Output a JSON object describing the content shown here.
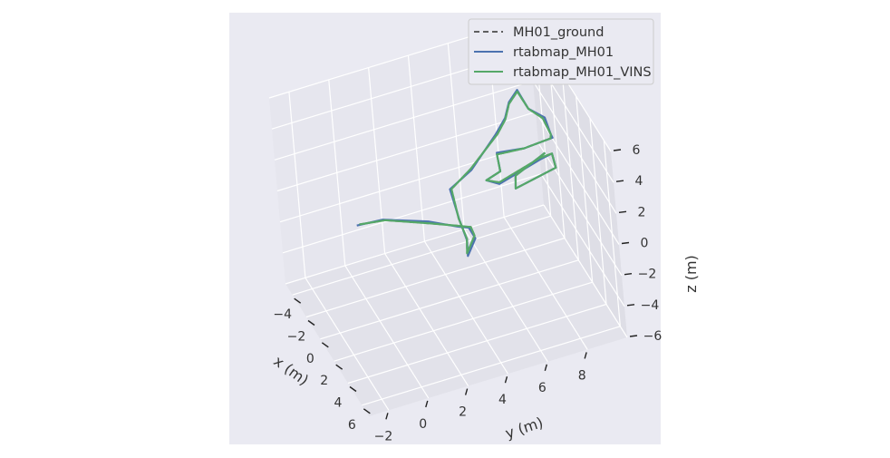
{
  "chart_data": {
    "type": "line",
    "projection": "3d",
    "title": "",
    "xlabel": "x (m)",
    "ylabel": "y (m)",
    "zlabel": "z (m)",
    "xlim": [
      -5,
      7
    ],
    "ylim": [
      -3,
      10
    ],
    "zlim": [
      -6,
      6
    ],
    "x_ticks": [
      -4,
      -2,
      0,
      2,
      4,
      6
    ],
    "y_ticks": [
      -2,
      0,
      2,
      4,
      6,
      8
    ],
    "z_ticks": [
      -6,
      -4,
      -2,
      0,
      2,
      4,
      6
    ],
    "x_tick_labels": [
      "−4",
      "−2",
      "0",
      "2",
      "4",
      "6"
    ],
    "y_tick_labels": [
      "−2",
      "0",
      "2",
      "4",
      "6",
      "8"
    ],
    "z_tick_labels": [
      "−6",
      "−4",
      "−2",
      "0",
      "2",
      "4",
      "6"
    ],
    "grid": true,
    "legend_position": "top-right",
    "series": [
      {
        "name": "MH01_ground",
        "color": "#5f5f5f",
        "dashed": true,
        "points": [
          [
            -0.3,
            -0.5,
            0.2
          ],
          [
            0.7,
            0.5,
            0.8
          ],
          [
            2.5,
            2.2,
            1.2
          ],
          [
            3.1,
            3.4,
            1.0
          ],
          [
            2.6,
            4.1,
            0.3
          ],
          [
            3.1,
            4.1,
            0.1
          ],
          [
            3.3,
            3.6,
            -0.7
          ],
          [
            2.8,
            3.8,
            -0.2
          ],
          [
            2.4,
            3.6,
            0.9
          ],
          [
            0.6,
            3.9,
            1.4
          ],
          [
            0.0,
            5.1,
            1.8
          ],
          [
            -0.1,
            6.6,
            3.4
          ],
          [
            -0.3,
            7.1,
            4.0
          ],
          [
            -0.8,
            7.5,
            4.5
          ],
          [
            -1.3,
            8.1,
            4.7
          ],
          [
            -0.7,
            8.4,
            3.9
          ],
          [
            -0.5,
            9.0,
            3.2
          ],
          [
            -0.4,
            9.3,
            2.1
          ],
          [
            -1.2,
            9.5,
            1.2
          ],
          [
            -1.3,
            8.2,
            1.0
          ],
          [
            -0.5,
            6.6,
            1.8
          ],
          [
            0.5,
            6.4,
            1.5
          ],
          [
            1.1,
            5.5,
            1.7
          ],
          [
            1.2,
            6.1,
            1.4
          ],
          [
            -0.2,
            8.6,
            1.0
          ],
          [
            -0.5,
            9.3,
            0.8
          ],
          [
            0.3,
            9.2,
            0.5
          ],
          [
            1.8,
            6.7,
            1.2
          ],
          [
            1.3,
            6.9,
            1.6
          ],
          [
            -0.6,
            9.0,
            0.9
          ]
        ]
      },
      {
        "name": "rtabmap_MH01",
        "color": "#4c72b0",
        "dashed": false,
        "points": [
          [
            -0.4,
            -0.6,
            0.1
          ],
          [
            0.6,
            0.4,
            0.8
          ],
          [
            2.4,
            2.1,
            1.3
          ],
          [
            3.1,
            3.3,
            1.0
          ],
          [
            2.6,
            4.0,
            0.3
          ],
          [
            3.2,
            4.1,
            0.0
          ],
          [
            3.4,
            3.6,
            -0.8
          ],
          [
            2.8,
            3.8,
            -0.3
          ],
          [
            2.5,
            3.6,
            0.9
          ],
          [
            0.7,
            3.8,
            1.5
          ],
          [
            0.1,
            5.1,
            1.8
          ],
          [
            -0.1,
            6.5,
            3.4
          ],
          [
            -0.3,
            7.1,
            4.1
          ],
          [
            -0.8,
            7.5,
            4.6
          ],
          [
            -1.3,
            8.1,
            4.8
          ],
          [
            -0.7,
            8.4,
            3.9
          ],
          [
            -0.5,
            9.1,
            3.2
          ],
          [
            -0.4,
            9.3,
            2.1
          ],
          [
            -1.2,
            9.6,
            1.2
          ],
          [
            -1.3,
            8.2,
            1.0
          ],
          [
            -0.5,
            6.6,
            1.9
          ],
          [
            0.5,
            6.4,
            1.5
          ],
          [
            1.1,
            5.5,
            1.7
          ],
          [
            1.2,
            6.1,
            1.3
          ],
          [
            -0.2,
            8.6,
            0.9
          ],
          [
            -0.5,
            9.3,
            0.8
          ],
          [
            0.3,
            9.2,
            0.5
          ],
          [
            1.8,
            6.7,
            1.2
          ],
          [
            1.3,
            6.9,
            1.6
          ],
          [
            -0.6,
            9.0,
            0.9
          ]
        ]
      },
      {
        "name": "rtabmap_MH01_VINS",
        "color": "#55a868",
        "dashed": false,
        "points": [
          [
            -0.3,
            -0.5,
            0.2
          ],
          [
            0.7,
            0.5,
            0.8
          ],
          [
            2.5,
            2.2,
            1.2
          ],
          [
            3.1,
            3.4,
            1.0
          ],
          [
            2.6,
            4.1,
            0.3
          ],
          [
            3.1,
            4.1,
            0.1
          ],
          [
            3.3,
            3.6,
            -0.7
          ],
          [
            2.8,
            3.8,
            -0.2
          ],
          [
            2.4,
            3.6,
            0.9
          ],
          [
            0.6,
            3.9,
            1.4
          ],
          [
            0.0,
            5.1,
            1.8
          ],
          [
            -0.1,
            6.6,
            3.4
          ],
          [
            -0.3,
            7.1,
            4.0
          ],
          [
            -0.8,
            7.5,
            4.5
          ],
          [
            -1.3,
            8.1,
            4.7
          ],
          [
            -0.7,
            8.4,
            3.9
          ],
          [
            -0.5,
            9.0,
            3.2
          ],
          [
            -0.4,
            9.3,
            2.1
          ],
          [
            -1.2,
            9.5,
            1.2
          ],
          [
            -1.3,
            8.2,
            1.0
          ],
          [
            -0.5,
            6.6,
            1.8
          ],
          [
            0.5,
            6.4,
            1.5
          ],
          [
            1.1,
            5.5,
            1.7
          ],
          [
            1.2,
            6.1,
            1.4
          ],
          [
            -0.2,
            8.6,
            1.0
          ],
          [
            -0.5,
            9.3,
            0.8
          ],
          [
            0.3,
            9.2,
            0.5
          ],
          [
            1.8,
            6.7,
            1.2
          ],
          [
            1.3,
            6.9,
            1.6
          ],
          [
            -0.6,
            9.0,
            0.9
          ]
        ]
      }
    ]
  }
}
